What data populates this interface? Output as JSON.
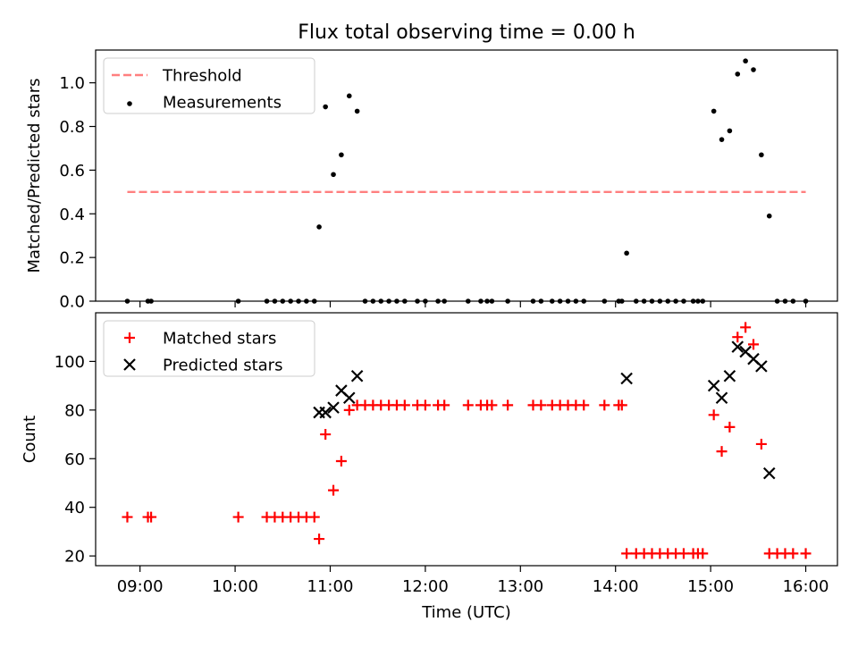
{
  "title": "Flux total observing time = 0.00 h",
  "chart_data": [
    {
      "type": "scatter",
      "panel": "top",
      "title": "Flux total observing time = 0.00 h",
      "xlabel": "",
      "ylabel": "Matched/Predicted stars",
      "xlim": [
        "08:32",
        "16:20"
      ],
      "ylim": [
        0,
        1.15
      ],
      "x_ticks": [
        "09:00",
        "10:00",
        "11:00",
        "12:00",
        "13:00",
        "14:00",
        "15:00",
        "16:00"
      ],
      "y_ticks": [
        "0.0",
        "0.2",
        "0.4",
        "0.6",
        "0.8",
        "1.0"
      ],
      "legend_position": "top-left",
      "series": [
        {
          "name": "Threshold",
          "style": "dashed-line",
          "color": "#ff7f7f",
          "points": [
            [
              "08:52",
              0.5
            ],
            [
              "16:00",
              0.5
            ]
          ]
        },
        {
          "name": "Measurements",
          "style": "dot",
          "color": "#000000",
          "points": [
            [
              "08:52",
              0
            ],
            [
              "09:05",
              0
            ],
            [
              "09:07",
              0
            ],
            [
              "10:02",
              0
            ],
            [
              "10:20",
              0
            ],
            [
              "10:25",
              0
            ],
            [
              "10:30",
              0
            ],
            [
              "10:35",
              0
            ],
            [
              "10:40",
              0
            ],
            [
              "10:45",
              0
            ],
            [
              "10:50",
              0
            ],
            [
              "10:53",
              0.34
            ],
            [
              "10:57",
              0.89
            ],
            [
              "11:02",
              0.58
            ],
            [
              "11:07",
              0.67
            ],
            [
              "11:12",
              0.94
            ],
            [
              "11:17",
              0.87
            ],
            [
              "11:22",
              0
            ],
            [
              "11:27",
              0
            ],
            [
              "11:32",
              0
            ],
            [
              "11:37",
              0
            ],
            [
              "11:42",
              0
            ],
            [
              "11:47",
              0
            ],
            [
              "11:55",
              0
            ],
            [
              "12:00",
              0
            ],
            [
              "12:08",
              0
            ],
            [
              "12:12",
              0
            ],
            [
              "12:27",
              0
            ],
            [
              "12:35",
              0
            ],
            [
              "12:39",
              0
            ],
            [
              "12:42",
              0
            ],
            [
              "12:52",
              0
            ],
            [
              "13:08",
              0
            ],
            [
              "13:13",
              0
            ],
            [
              "13:20",
              0
            ],
            [
              "13:25",
              0
            ],
            [
              "13:30",
              0
            ],
            [
              "13:35",
              0
            ],
            [
              "13:40",
              0
            ],
            [
              "13:53",
              0
            ],
            [
              "14:02",
              0
            ],
            [
              "14:04",
              0
            ],
            [
              "14:07",
              0.22
            ],
            [
              "14:13",
              0
            ],
            [
              "14:18",
              0
            ],
            [
              "14:23",
              0
            ],
            [
              "14:28",
              0
            ],
            [
              "14:33",
              0
            ],
            [
              "14:38",
              0
            ],
            [
              "14:43",
              0
            ],
            [
              "14:49",
              0
            ],
            [
              "14:52",
              0
            ],
            [
              "14:55",
              0
            ],
            [
              "15:02",
              0.87
            ],
            [
              "15:07",
              0.74
            ],
            [
              "15:12",
              0.78
            ],
            [
              "15:17",
              1.04
            ],
            [
              "15:22",
              1.1
            ],
            [
              "15:27",
              1.06
            ],
            [
              "15:32",
              0.67
            ],
            [
              "15:37",
              0.39
            ],
            [
              "15:42",
              0
            ],
            [
              "15:47",
              0
            ],
            [
              "15:52",
              0
            ],
            [
              "16:00",
              0
            ]
          ]
        }
      ]
    },
    {
      "type": "scatter",
      "panel": "bottom",
      "xlabel": "Time (UTC)",
      "ylabel": "Count",
      "xlim": [
        "08:32",
        "16:20"
      ],
      "ylim": [
        16,
        120
      ],
      "x_ticks": [
        "09:00",
        "10:00",
        "11:00",
        "12:00",
        "13:00",
        "14:00",
        "15:00",
        "16:00"
      ],
      "y_ticks": [
        "20",
        "40",
        "60",
        "80",
        "100"
      ],
      "legend_position": "top-left",
      "series": [
        {
          "name": "Matched stars",
          "marker": "plus",
          "color": "#ff0000",
          "points": [
            [
              "08:52",
              36
            ],
            [
              "09:05",
              36
            ],
            [
              "09:07",
              36
            ],
            [
              "10:02",
              36
            ],
            [
              "10:20",
              36
            ],
            [
              "10:25",
              36
            ],
            [
              "10:30",
              36
            ],
            [
              "10:35",
              36
            ],
            [
              "10:40",
              36
            ],
            [
              "10:45",
              36
            ],
            [
              "10:50",
              36
            ],
            [
              "10:53",
              27
            ],
            [
              "10:57",
              70
            ],
            [
              "11:02",
              47
            ],
            [
              "11:07",
              59
            ],
            [
              "11:12",
              80
            ],
            [
              "11:17",
              82
            ],
            [
              "11:22",
              82
            ],
            [
              "11:27",
              82
            ],
            [
              "11:32",
              82
            ],
            [
              "11:37",
              82
            ],
            [
              "11:42",
              82
            ],
            [
              "11:47",
              82
            ],
            [
              "11:55",
              82
            ],
            [
              "12:00",
              82
            ],
            [
              "12:08",
              82
            ],
            [
              "12:12",
              82
            ],
            [
              "12:27",
              82
            ],
            [
              "12:35",
              82
            ],
            [
              "12:39",
              82
            ],
            [
              "12:42",
              82
            ],
            [
              "12:52",
              82
            ],
            [
              "13:08",
              82
            ],
            [
              "13:13",
              82
            ],
            [
              "13:20",
              82
            ],
            [
              "13:25",
              82
            ],
            [
              "13:30",
              82
            ],
            [
              "13:35",
              82
            ],
            [
              "13:40",
              82
            ],
            [
              "13:53",
              82
            ],
            [
              "14:02",
              82
            ],
            [
              "14:04",
              82
            ],
            [
              "14:07",
              21
            ],
            [
              "14:13",
              21
            ],
            [
              "14:18",
              21
            ],
            [
              "14:23",
              21
            ],
            [
              "14:28",
              21
            ],
            [
              "14:33",
              21
            ],
            [
              "14:38",
              21
            ],
            [
              "14:43",
              21
            ],
            [
              "14:49",
              21
            ],
            [
              "14:52",
              21
            ],
            [
              "14:55",
              21
            ],
            [
              "15:02",
              78
            ],
            [
              "15:07",
              63
            ],
            [
              "15:12",
              73
            ],
            [
              "15:17",
              110
            ],
            [
              "15:22",
              114
            ],
            [
              "15:27",
              107
            ],
            [
              "15:32",
              66
            ],
            [
              "15:37",
              21
            ],
            [
              "15:42",
              21
            ],
            [
              "15:47",
              21
            ],
            [
              "15:52",
              21
            ],
            [
              "16:00",
              21
            ]
          ]
        },
        {
          "name": "Predicted stars",
          "marker": "x",
          "color": "#000000",
          "points": [
            [
              "10:53",
              79
            ],
            [
              "10:57",
              79
            ],
            [
              "11:02",
              81
            ],
            [
              "11:07",
              88
            ],
            [
              "11:12",
              85
            ],
            [
              "11:17",
              94
            ],
            [
              "14:07",
              93
            ],
            [
              "15:02",
              90
            ],
            [
              "15:07",
              85
            ],
            [
              "15:12",
              94
            ],
            [
              "15:17",
              106
            ],
            [
              "15:22",
              104
            ],
            [
              "15:27",
              101
            ],
            [
              "15:32",
              98
            ],
            [
              "15:37",
              54
            ]
          ]
        }
      ]
    }
  ]
}
